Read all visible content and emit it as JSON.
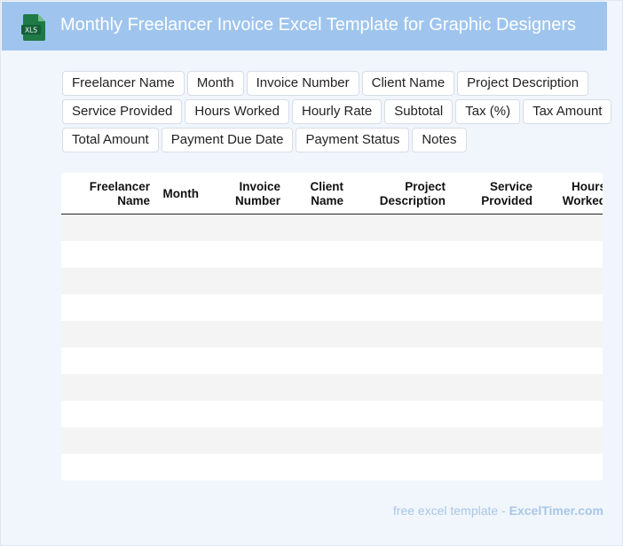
{
  "header": {
    "title": "Monthly Freelancer Invoice Excel Template for Graphic Designers",
    "icon": "xls-file-icon",
    "icon_text": "XLS",
    "color": "#9fc5ee"
  },
  "fields": [
    "Freelancer Name",
    "Month",
    "Invoice Number",
    "Client Name",
    "Project Description",
    "Service Provided",
    "Hours Worked",
    "Hourly Rate",
    "Subtotal",
    "Tax (%)",
    "Tax Amount",
    "Total Amount",
    "Payment Due Date",
    "Payment Status",
    "Notes"
  ],
  "table": {
    "headers": [
      [
        "Freelancer",
        "Name"
      ],
      [
        "Month",
        ""
      ],
      [
        "Invoice",
        "Number"
      ],
      [
        "Client",
        "Name"
      ],
      [
        "Project",
        "Description"
      ],
      [
        "Service",
        "Provided"
      ],
      [
        "Hours",
        "Worked"
      ]
    ],
    "row_count": 10
  },
  "footer": {
    "label": "free excel template -",
    "brand": "ExcelTimer.com"
  }
}
